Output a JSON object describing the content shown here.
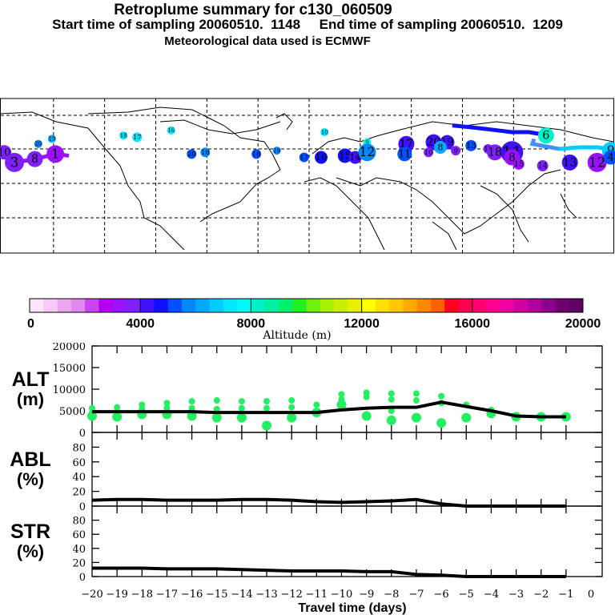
{
  "header": {
    "title": "Retroplume summary for c130_060509",
    "subtitle": "Start time of sampling 20060510.  1148     End time of sampling 20060510.  1209",
    "met_line": "Meteorological data used is ECMWF"
  },
  "colorbar": {
    "label": "Altitude (m)",
    "ticks": [
      "0",
      "4000",
      "8000",
      "12000",
      "16000",
      "20000"
    ],
    "colors": [
      "#fde6fd",
      "#f8c8f8",
      "#eea8f0",
      "#e088f0",
      "#cc44ee",
      "#b400ee",
      "#9a10ff",
      "#8020ff",
      "#4010ff",
      "#1010ff",
      "#0050ff",
      "#0088ff",
      "#00aaff",
      "#00ccff",
      "#00e8ff",
      "#00f8f8",
      "#00f0c8",
      "#00f0a0",
      "#00f070",
      "#20f020",
      "#70f010",
      "#a8f000",
      "#c8f000",
      "#e8f000",
      "#ffff00",
      "#ffe000",
      "#ffc800",
      "#ffa800",
      "#ff8800",
      "#ff6000",
      "#ff0020",
      "#ff0050",
      "#ff0070",
      "#ff0090",
      "#f000a0",
      "#d000a0",
      "#b000a0",
      "#900090",
      "#700070",
      "#600060"
    ]
  },
  "map": {
    "clusters": [
      {
        "label": "10",
        "lon": -178,
        "lat": 58,
        "alt": 3800,
        "r": 9
      },
      {
        "label": "3",
        "lon": -172,
        "lat": 52,
        "alt": 3600,
        "r": 12
      },
      {
        "label": "8",
        "lon": -160,
        "lat": 54,
        "alt": 3600,
        "r": 10
      },
      {
        "label": "1",
        "lon": -148,
        "lat": 57,
        "alt": 3400,
        "r": 11
      },
      {
        "label": "20",
        "lon": -158,
        "lat": 63,
        "alt": 5600,
        "r": 5
      },
      {
        "label": "19",
        "lon": -150,
        "lat": 66,
        "alt": 6000,
        "r": 5
      },
      {
        "label": "18",
        "lon": -108,
        "lat": 68,
        "alt": 7200,
        "r": 5
      },
      {
        "label": "17",
        "lon": -100,
        "lat": 67,
        "alt": 7000,
        "r": 6
      },
      {
        "label": "16",
        "lon": -80,
        "lat": 71,
        "alt": 7200,
        "r": 5
      },
      {
        "label": "20",
        "lon": -68,
        "lat": 57,
        "alt": 5200,
        "r": 6
      },
      {
        "label": "18",
        "lon": -60,
        "lat": 58,
        "alt": 5600,
        "r": 6
      },
      {
        "label": "19",
        "lon": -18,
        "lat": 59,
        "alt": 5800,
        "r": 5
      },
      {
        "label": "18",
        "lon": -30,
        "lat": 57,
        "alt": 5200,
        "r": 6
      },
      {
        "label": "10",
        "lon": 10,
        "lat": 70,
        "alt": 7400,
        "r": 5
      },
      {
        "label": "9",
        "lon": 35,
        "lat": 64,
        "alt": 7600,
        "r": 5
      },
      {
        "label": "17",
        "lon": -2,
        "lat": 55,
        "alt": 5000,
        "r": 6
      },
      {
        "label": "16",
        "lon": 8,
        "lat": 55,
        "alt": 4600,
        "r": 8
      },
      {
        "label": "15",
        "lon": 22,
        "lat": 56,
        "alt": 4600,
        "r": 9
      },
      {
        "label": "14",
        "lon": 28,
        "lat": 55,
        "alt": 4400,
        "r": 8
      },
      {
        "label": "12",
        "lon": 35,
        "lat": 58,
        "alt": 5800,
        "r": 11
      },
      {
        "label": "17",
        "lon": 58,
        "lat": 63,
        "alt": 4200,
        "r": 10
      },
      {
        "label": "11",
        "lon": 57,
        "lat": 57,
        "alt": 5200,
        "r": 9
      },
      {
        "label": "20",
        "lon": 74,
        "lat": 64,
        "alt": 4200,
        "r": 10
      },
      {
        "label": "19",
        "lon": 82,
        "lat": 64,
        "alt": 4000,
        "r": 9
      },
      {
        "label": "8",
        "lon": 78,
        "lat": 61,
        "alt": 6400,
        "r": 8
      },
      {
        "label": "10",
        "lon": 71,
        "lat": 58,
        "alt": 3800,
        "r": 6
      },
      {
        "label": "9",
        "lon": 87,
        "lat": 59,
        "alt": 3800,
        "r": 6
      },
      {
        "label": "13",
        "lon": 96,
        "lat": 62,
        "alt": 5200,
        "r": 7
      },
      {
        "label": "12",
        "lon": 106,
        "lat": 60,
        "alt": 3800,
        "r": 6
      },
      {
        "label": "18",
        "lon": 110,
        "lat": 58,
        "alt": 3600,
        "r": 10
      },
      {
        "label": "11",
        "lon": 120,
        "lat": 58,
        "alt": 4400,
        "r": 14
      },
      {
        "label": "8",
        "lon": 120,
        "lat": 55,
        "alt": 3400,
        "r": 10
      },
      {
        "label": "15",
        "lon": 124,
        "lat": 51,
        "alt": 3400,
        "r": 7
      },
      {
        "label": "14",
        "lon": 138,
        "lat": 50,
        "alt": 3600,
        "r": 7
      },
      {
        "label": "6",
        "lon": 140,
        "lat": 68,
        "alt": 8400,
        "r": 10
      },
      {
        "label": "13",
        "lon": 154,
        "lat": 52,
        "alt": 4000,
        "r": 10
      },
      {
        "label": "12",
        "lon": 170,
        "lat": 52,
        "alt": 3400,
        "r": 12
      },
      {
        "label": "9",
        "lon": 178,
        "lat": 59,
        "alt": 6800,
        "r": 11
      },
      {
        "label": "4",
        "lon": 178,
        "lat": 55,
        "alt": 5200,
        "r": 9
      }
    ],
    "tracks": [
      {
        "color": "#1010ff",
        "points": [
          [
            85,
            74
          ],
          [
            95,
            73
          ],
          [
            104,
            72
          ],
          [
            112,
            71
          ],
          [
            120,
            70
          ],
          [
            130,
            70
          ],
          [
            136,
            69
          ],
          [
            140,
            68
          ]
        ]
      },
      {
        "color": "#4090ff",
        "points": [
          [
            133,
            66
          ],
          [
            132,
            63
          ],
          [
            148,
            60
          ]
        ]
      },
      {
        "color": "#00ccff",
        "points": [
          [
            148,
            60
          ],
          [
            160,
            61
          ],
          [
            170,
            61
          ],
          [
            178,
            60
          ]
        ]
      },
      {
        "color": "#9a10ff",
        "points": [
          [
            -140,
            56
          ],
          [
            -148,
            57
          ],
          [
            -160,
            54
          ],
          [
            -172,
            52
          ]
        ]
      }
    ]
  },
  "chart_data": [
    {
      "type": "line",
      "panel": "ALT",
      "ylabel": "ALT\n(m)",
      "ylim": [
        0,
        20000
      ],
      "yticks": [
        "0",
        "5000",
        "10000",
        "15000",
        "20000"
      ],
      "x": [
        -20,
        -19,
        -18,
        -17,
        -16,
        -15,
        -14,
        -13,
        -12,
        -11,
        -10,
        -9,
        -8,
        -7,
        -6,
        -5,
        -4,
        -3,
        -2,
        -1
      ],
      "values": [
        4800,
        4800,
        4800,
        4800,
        4800,
        4600,
        4600,
        4600,
        4600,
        4600,
        5200,
        5600,
        5800,
        5800,
        7000,
        6000,
        5000,
        3800,
        3600,
        3600
      ],
      "scatter": [
        {
          "x": -20,
          "y": [
            5600,
            4600,
            3800
          ]
        },
        {
          "x": -19,
          "y": [
            5800,
            4800,
            3600
          ]
        },
        {
          "x": -18,
          "y": [
            6400,
            5400,
            4200
          ]
        },
        {
          "x": -17,
          "y": [
            6800,
            5600,
            4200
          ]
        },
        {
          "x": -16,
          "y": [
            7200,
            5600,
            3800
          ]
        },
        {
          "x": -15,
          "y": [
            7400,
            5400,
            3400
          ]
        },
        {
          "x": -14,
          "y": [
            7200,
            5600,
            3400
          ]
        },
        {
          "x": -13,
          "y": [
            7200,
            5600,
            1600
          ]
        },
        {
          "x": -12,
          "y": [
            7400,
            5800,
            3400
          ]
        },
        {
          "x": -11,
          "y": [
            6400,
            4600
          ]
        },
        {
          "x": -10,
          "y": [
            8800,
            7600,
            6400
          ]
        },
        {
          "x": -9,
          "y": [
            9200,
            8200,
            3800
          ]
        },
        {
          "x": -8,
          "y": [
            9000,
            7600,
            5000,
            2800
          ]
        },
        {
          "x": -7,
          "y": [
            9000,
            7400,
            3400
          ]
        },
        {
          "x": -6,
          "y": [
            8400,
            6800,
            2200
          ]
        },
        {
          "x": -5,
          "y": [
            6400,
            3400
          ]
        },
        {
          "x": -4,
          "y": [
            5200,
            4400
          ]
        },
        {
          "x": -3,
          "y": [
            3600
          ]
        },
        {
          "x": -2,
          "y": [
            3600
          ]
        },
        {
          "x": -1,
          "y": [
            3600
          ]
        }
      ]
    },
    {
      "type": "line",
      "panel": "ABL",
      "ylabel": "ABL\n(%)",
      "ylim": [
        0,
        100
      ],
      "yticks": [
        "0",
        "20",
        "40",
        "60",
        "80"
      ],
      "x": [
        -20,
        -19,
        -18,
        -17,
        -16,
        -15,
        -14,
        -13,
        -12,
        -11,
        -10,
        -9,
        -8,
        -7,
        -6,
        -5,
        -4,
        -3,
        -2,
        -1
      ],
      "values": [
        8,
        9,
        9,
        8,
        8,
        8,
        9,
        9,
        8,
        6,
        5,
        6,
        7,
        9,
        3,
        0,
        0,
        0,
        0,
        0
      ]
    },
    {
      "type": "line",
      "panel": "STR",
      "ylabel": "STR\n(%)",
      "ylim": [
        0,
        100
      ],
      "yticks": [
        "0",
        "20",
        "40",
        "60",
        "80"
      ],
      "x": [
        -20,
        -19,
        -18,
        -17,
        -16,
        -15,
        -14,
        -13,
        -12,
        -11,
        -10,
        -9,
        -8,
        -7,
        -6,
        -5,
        -4,
        -3,
        -2,
        -1
      ],
      "values": [
        12,
        12,
        12,
        11,
        11,
        11,
        10,
        9,
        8,
        8,
        8,
        7,
        7,
        3,
        2,
        0,
        0,
        0,
        0,
        0
      ]
    }
  ],
  "xaxis": {
    "label": "Travel time (days)",
    "ticks": [
      "-20",
      "-19",
      "-18",
      "-17",
      "-16",
      "-15",
      "-14",
      "-13",
      "-12",
      "-11",
      "-10",
      "-9",
      "-8",
      "-7",
      "-6",
      "-5",
      "-4",
      "-3",
      "-2",
      "-1",
      "0"
    ]
  }
}
